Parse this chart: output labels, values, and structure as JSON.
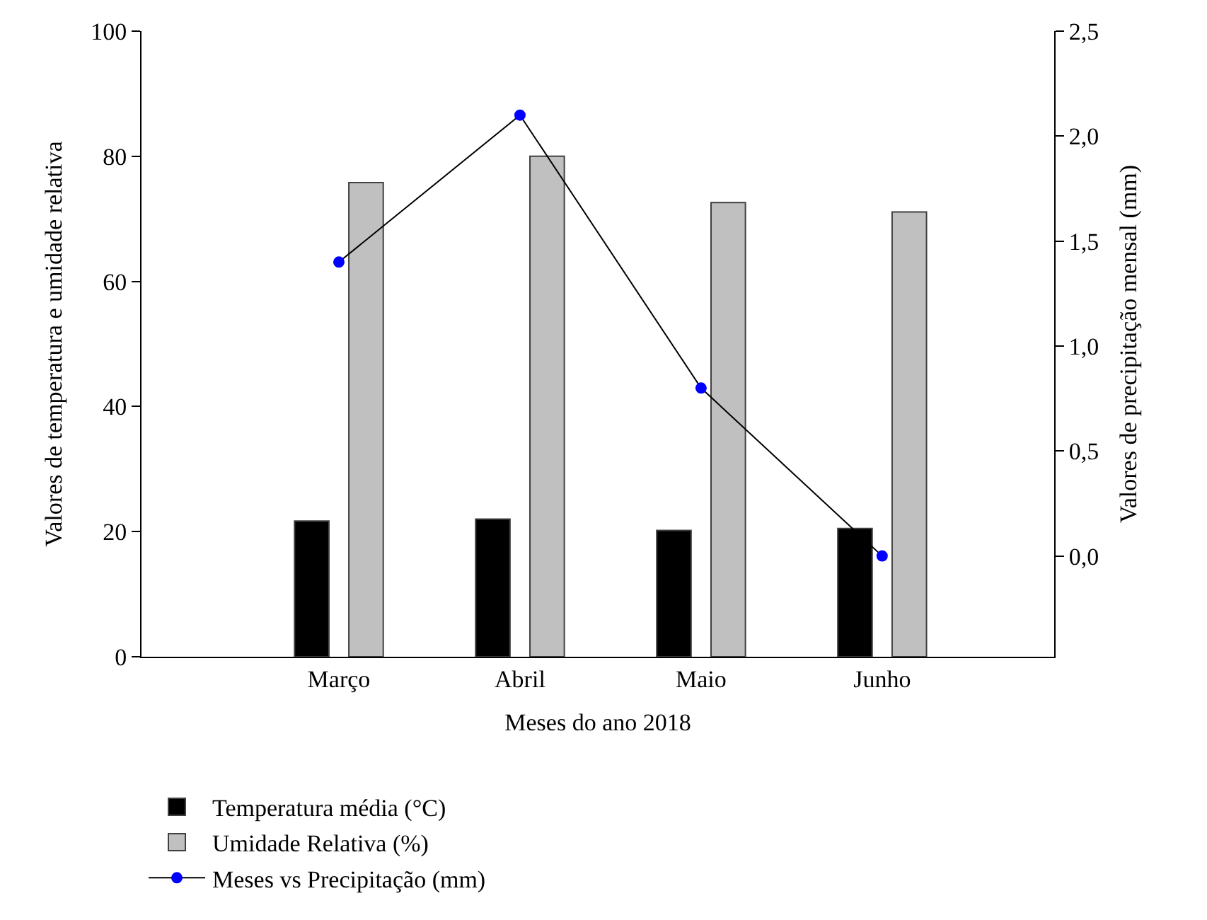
{
  "chart_data": {
    "type": "bar",
    "xlabel": "Meses do ano 2018",
    "ylabel": "Valores de temperatura e umidade relativa",
    "y2label": "Valores de precipitação mensal (mm)",
    "categories": [
      "Março",
      "Abril",
      "Maio",
      "Junho"
    ],
    "series": [
      {
        "name": "Temperatura média (°C)",
        "color": "#000000",
        "values": [
          21.7,
          22.0,
          20.2,
          20.5
        ]
      },
      {
        "name": "Umidade Relativa (%)",
        "color": "#c0c0c0",
        "values": [
          75.8,
          80.0,
          72.6,
          71.1
        ]
      },
      {
        "name": "Meses vs Precipitação (mm)",
        "type": "line",
        "axis": "y2",
        "color": "#0000ff",
        "marker": "circle",
        "values": [
          1.4,
          2.1,
          0.8,
          0.0
        ]
      }
    ],
    "ylim": [
      0,
      100
    ],
    "yticks": [
      0,
      20,
      40,
      60,
      80,
      100
    ],
    "y2lim": [
      -0.48,
      2.5
    ],
    "y2ticks": [
      {
        "value": 0,
        "label": "0,0"
      },
      {
        "value": 0.5,
        "label": "0,5"
      },
      {
        "value": 1,
        "label": "1,0"
      },
      {
        "value": 1.5,
        "label": "1,5"
      },
      {
        "value": 2,
        "label": "2,0"
      },
      {
        "value": 2.5,
        "label": "2,5"
      }
    ],
    "legend": "bottom"
  }
}
